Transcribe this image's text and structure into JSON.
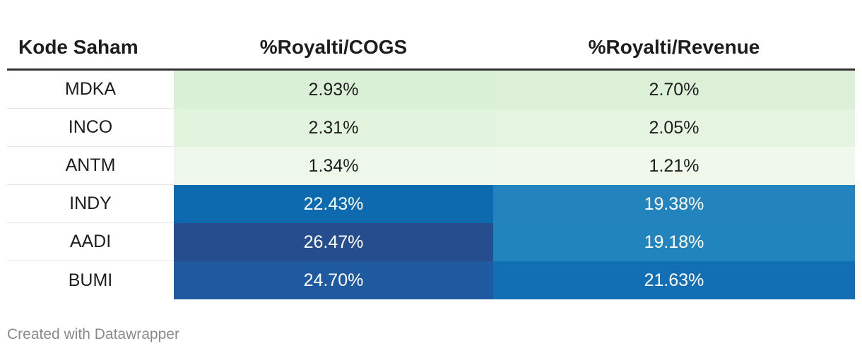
{
  "chart_data": {
    "type": "table",
    "columns": [
      "Kode Saham",
      "%Royalti/COGS",
      "%Royalti/Revenue"
    ],
    "rows": [
      {
        "code": "MDKA",
        "cogs": "2.93%",
        "revenue": "2.70%",
        "cogs_value": 2.93,
        "revenue_value": 2.7,
        "cogs_bg": "#d9efd6",
        "revenue_bg": "#dcf0d8",
        "cogs_text": "#1d1d1d",
        "revenue_text": "#1d1d1d"
      },
      {
        "code": "INCO",
        "cogs": "2.31%",
        "revenue": "2.05%",
        "cogs_value": 2.31,
        "revenue_value": 2.05,
        "cogs_bg": "#e2f3de",
        "revenue_bg": "#e5f4e1",
        "cogs_text": "#1d1d1d",
        "revenue_text": "#1d1d1d"
      },
      {
        "code": "ANTM",
        "cogs": "1.34%",
        "revenue": "1.21%",
        "cogs_value": 1.34,
        "revenue_value": 1.21,
        "cogs_bg": "#eef8ea",
        "revenue_bg": "#eff8eb",
        "cogs_text": "#1d1d1d",
        "revenue_text": "#1d1d1d"
      },
      {
        "code": "INDY",
        "cogs": "22.43%",
        "revenue": "19.38%",
        "cogs_value": 22.43,
        "revenue_value": 19.38,
        "cogs_bg": "#0e6aaf",
        "revenue_bg": "#2283bd",
        "cogs_text": "#ffffff",
        "revenue_text": "#ffffff"
      },
      {
        "code": "AADI",
        "cogs": "26.47%",
        "revenue": "19.18%",
        "cogs_value": 26.47,
        "revenue_value": 19.18,
        "cogs_bg": "#264e8e",
        "revenue_bg": "#2284bd",
        "cogs_text": "#ffffff",
        "revenue_text": "#ffffff"
      },
      {
        "code": "BUMI",
        "cogs": "24.70%",
        "revenue": "21.63%",
        "cogs_value": 24.7,
        "revenue_value": 21.63,
        "cogs_bg": "#1f5aa0",
        "revenue_bg": "#136fb3",
        "cogs_text": "#ffffff",
        "revenue_text": "#ffffff"
      }
    ],
    "header_border_color": "#333333"
  },
  "footer": {
    "credit": "Created with Datawrapper"
  }
}
